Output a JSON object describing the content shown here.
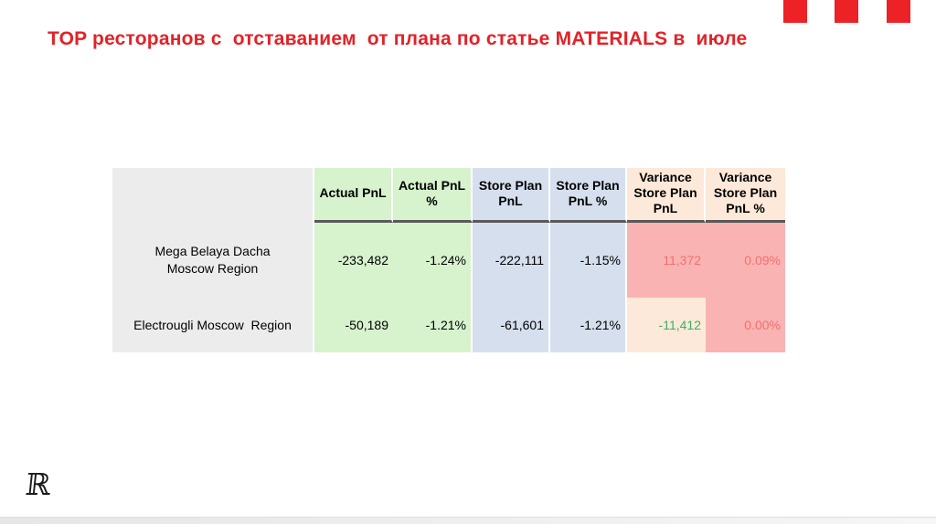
{
  "slide": {
    "title": "TOP ресторанов с  отставанием  от плана по статье MATERIALS в  июле",
    "logo_glyph": "ℝ"
  },
  "colors": {
    "brand_red": "#EC2227",
    "title_red": "#E32227",
    "header_green_fill": "#D6F3CD",
    "header_blue_fill": "#D5DFEE",
    "header_peach_fill": "#FCE9D9",
    "variance_pink_fill": "#F9B3B3",
    "variance_peach_fill": "#FCE9D9",
    "name_column_gray": "#ECECEC",
    "negative_variance_text": "#F2706F",
    "positive_variance_text": "#3FAE62"
  },
  "table": {
    "columns": [
      "",
      "Actual PnL",
      "Actual PnL %",
      "Store Plan PnL",
      "Store Plan PnL %",
      "Variance Store Plan PnL",
      "Variance Store Plan PnL %"
    ],
    "rows": [
      {
        "name": "Mega Belaya Dacha Moscow Region",
        "actual_pnl": "-233,482",
        "actual_pnl_pct": "-1.24%",
        "store_plan_pnl": "-222,111",
        "store_plan_pnl_pct": "-1.15%",
        "variance_store_plan_pnl": "11,372",
        "variance_store_plan_pnl_pct": "0.09%"
      },
      {
        "name": "Electrougli Moscow  Region",
        "actual_pnl": "-50,189",
        "actual_pnl_pct": "-1.21%",
        "store_plan_pnl": "-61,601",
        "store_plan_pnl_pct": "-1.21%",
        "variance_store_plan_pnl": "-11,412",
        "variance_store_plan_pnl_pct": "0.00%"
      }
    ]
  }
}
